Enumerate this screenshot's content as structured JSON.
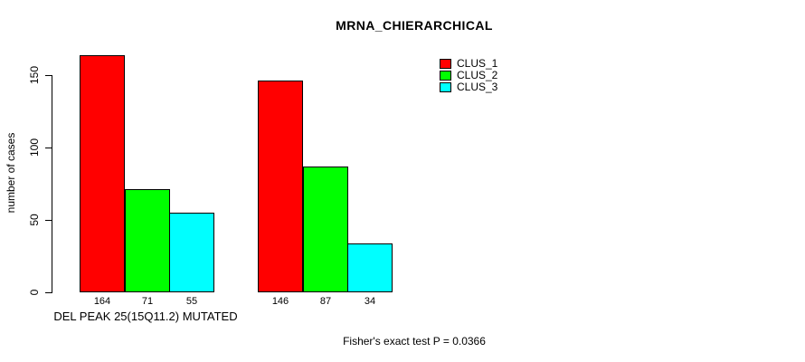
{
  "header": {
    "title": "MRNA_CHIERARCHICAL"
  },
  "chart_data": {
    "type": "bar",
    "title": "MRNA_CHIERARCHICAL",
    "ylabel": "number of cases",
    "xlabel": "DEL PEAK 25(15Q11.2) MUTATED",
    "ylim": [
      0,
      170
    ],
    "yticks": [
      0,
      50,
      100,
      150
    ],
    "grid": false,
    "legend_position": "top-right",
    "num_groups": 2,
    "series": [
      {
        "name": "CLUS_1",
        "color": "#ff0000",
        "values": [
          164,
          146
        ]
      },
      {
        "name": "CLUS_2",
        "color": "#00ff00",
        "values": [
          71,
          87
        ]
      },
      {
        "name": "CLUS_3",
        "color": "#00ffff",
        "values": [
          55,
          34
        ]
      }
    ],
    "bar_value_labels": [
      164,
      71,
      55,
      146,
      87,
      34
    ],
    "annotation": "Fisher's exact test P = 0.0366"
  },
  "legend": {
    "items": [
      {
        "label": "CLUS_1",
        "color": "#ff0000"
      },
      {
        "label": "CLUS_2",
        "color": "#00ff00"
      },
      {
        "label": "CLUS_3",
        "color": "#00ffff"
      }
    ]
  },
  "footer": {
    "stat_text": "Fisher's exact test P = 0.0366"
  }
}
